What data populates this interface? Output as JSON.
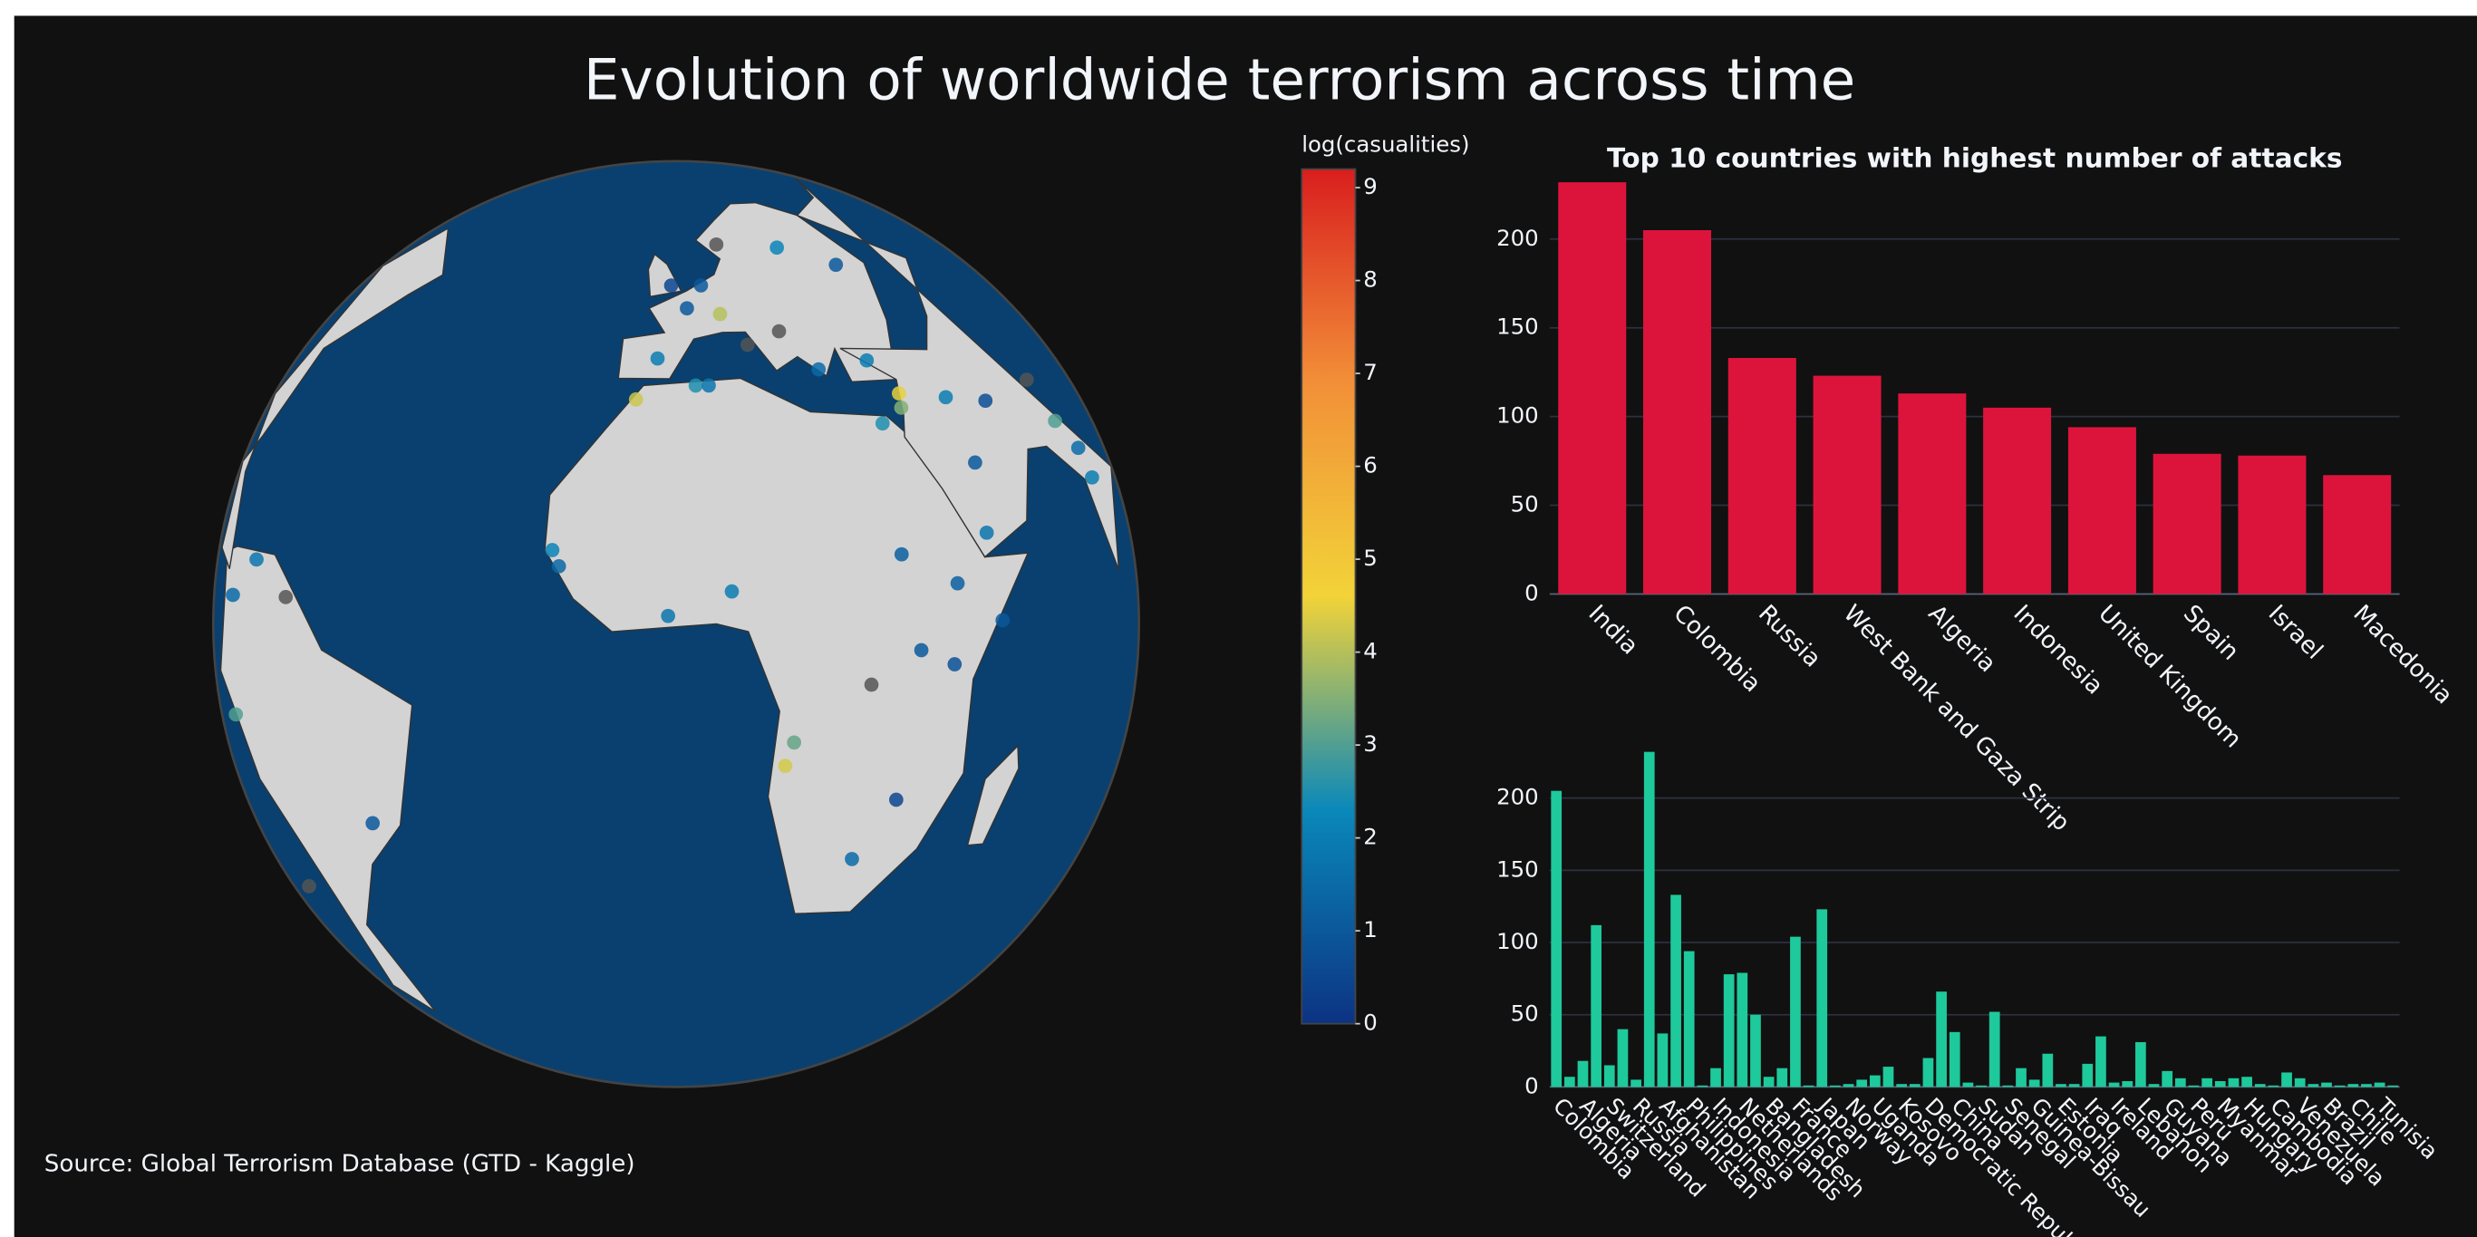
{
  "title": "Evolution of worldwide terrorism across time",
  "source": "Source: Global Terrorism Database (GTD - Kaggle)",
  "chart_data": [
    {
      "type": "scattergeo",
      "lon": [
        -3,
        2,
        -1,
        12,
        23,
        32,
        3,
        5,
        -6,
        35,
        44,
        35.5,
        -74,
        -75,
        -58,
        15,
        14,
        32,
        37,
        30,
        7,
        -1,
        -16,
        -15,
        45,
        38,
        25,
        30,
        25,
        37,
        25,
        10,
        5,
        8,
        18,
        31,
        45,
        44,
        52,
        73,
        72,
        66,
        68,
        -45,
        -71,
        -67
      ],
      "lat": [
        40,
        48,
        52,
        42,
        38,
        39,
        36,
        36,
        34,
        32,
        33,
        34,
        5,
        -10,
        6,
        -10,
        -13,
        1,
        -1,
        13,
        9,
        6,
        14,
        12,
        4,
        9,
        -3,
        -18,
        -26,
        55,
        59,
        60,
        52,
        47,
        44,
        30,
        24,
        15,
        32,
        20,
        24,
        34,
        28,
        -22,
        -33,
        10
      ],
      "values": [
        2,
        1,
        0.5,
        null,
        1.5,
        2,
        2.5,
        1.8,
        4.2,
        3.5,
        2,
        4.5,
        1.5,
        3,
        null,
        3.2,
        4.3,
        1,
        0.8,
        1.2,
        2,
        1.8,
        2.2,
        1.4,
        1,
        1.2,
        null,
        0.5,
        1.5,
        1,
        2.2,
        null,
        1,
        4,
        null,
        2.5,
        1,
        1.8,
        0.7,
        2,
        1.5,
        null,
        3,
        1,
        null,
        1.8
      ],
      "null_color": "#555555",
      "colorbar": {
        "title": "log(casualities)",
        "range": [
          0,
          9.2
        ],
        "ticks": [
          0,
          1,
          2,
          3,
          4,
          5,
          6,
          7,
          8,
          9
        ],
        "colorscale": [
          [
            0,
            "#0c3383"
          ],
          [
            0.25,
            "#0a88ba"
          ],
          [
            0.5,
            "#f2d338"
          ],
          [
            0.75,
            "#f28f38"
          ],
          [
            1,
            "#d91e1e"
          ]
        ]
      }
    },
    {
      "type": "bar",
      "title": "Top 10 countries with highest number of attacks",
      "categories": [
        "India",
        "Colombia",
        "Russia",
        "West Bank and Gaza Strip",
        "Algeria",
        "Indonesia",
        "United Kingdom",
        "Spain",
        "Israel",
        "Macedonia"
      ],
      "values": [
        232,
        205,
        133,
        123,
        113,
        105,
        94,
        79,
        78,
        67
      ],
      "color": "#dc143c",
      "ylim": [
        0,
        235
      ],
      "yticks": [
        0,
        50,
        100,
        150,
        200
      ],
      "grid": true
    },
    {
      "type": "bar",
      "categories": [
        "Colombia",
        null,
        "Algeria",
        null,
        "Switzerland",
        null,
        "Russia",
        null,
        "Afghanistan",
        null,
        "Philippines",
        null,
        "Indonesia",
        null,
        "Netherlands",
        null,
        "Bangladesh",
        null,
        "France",
        null,
        "Japan",
        null,
        "Norway",
        null,
        "Uganda",
        null,
        "Kosovo",
        null,
        "Democratic Repub...",
        null,
        "China",
        null,
        "Sudan",
        null,
        "Senegal",
        null,
        "Guinea-Bissau",
        null,
        "Estonia",
        null,
        "Iraq",
        null,
        "Ireland",
        null,
        "Lebanon",
        null,
        "Guyana",
        null,
        "Peru",
        null,
        "Myanmar",
        null,
        "Hungary",
        null,
        "Cambodia",
        null,
        "Venezuela",
        null,
        "Brazil",
        null,
        "Chile",
        null,
        "Tunisia",
        null
      ],
      "values": [
        205,
        7,
        18,
        112,
        15,
        40,
        5,
        232,
        37,
        133,
        94,
        1,
        13,
        78,
        79,
        50,
        7,
        13,
        104,
        1,
        123,
        1,
        2,
        5,
        8,
        14,
        2,
        2,
        20,
        66,
        38,
        3,
        1,
        52,
        1,
        13,
        5,
        23,
        2,
        2,
        16,
        35,
        3,
        4,
        31,
        2,
        11,
        6,
        1,
        6,
        4,
        6,
        7,
        2,
        1,
        10,
        6,
        2,
        3,
        1,
        2,
        2,
        3,
        1
      ],
      "color": "#1ec99b",
      "ylim": [
        0,
        233
      ],
      "yticks": [
        0,
        50,
        100,
        150,
        200
      ],
      "grid": true
    }
  ]
}
